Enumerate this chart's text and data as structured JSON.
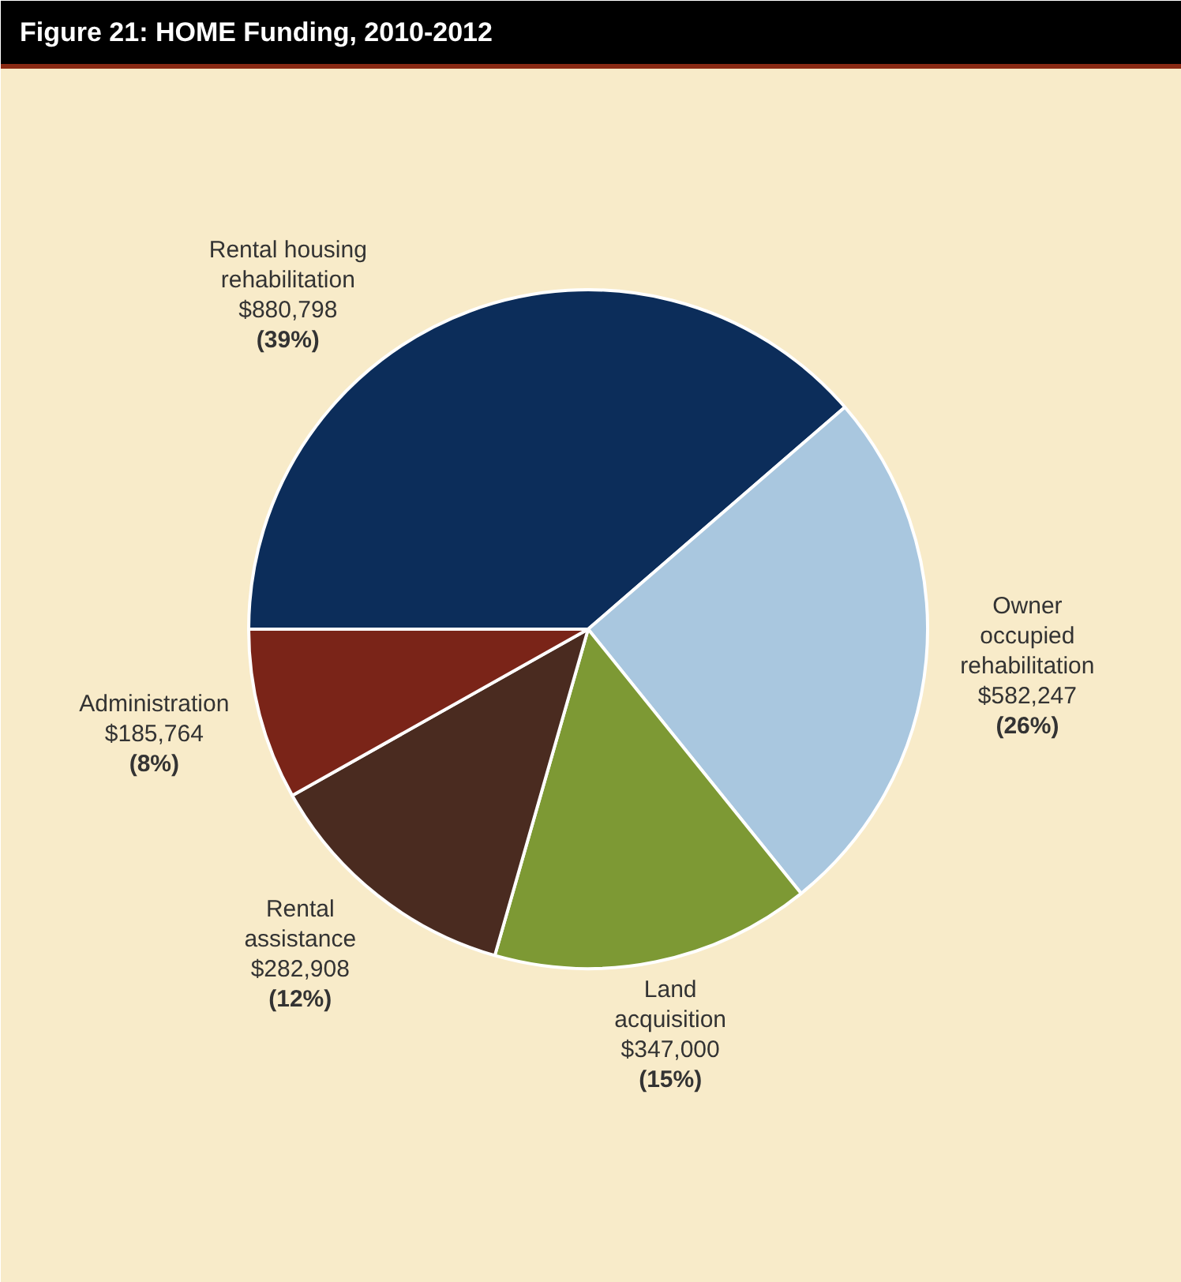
{
  "chart_data": {
    "type": "pie",
    "title": "Figure 21:  HOME Funding, 2010-2012",
    "categories": [
      "Rental housing\nrehabilitation",
      "Owner\noccupied\nrehabilitation",
      "Land\nacquisition",
      "Rental\nassistance",
      "Administration"
    ],
    "values": [
      880798,
      582247,
      347000,
      282908,
      185764
    ],
    "colors": [
      "#0c2d5a",
      "#a9c7df",
      "#7d9934",
      "#4a2b20",
      "#7a2418"
    ],
    "value_labels": [
      "$880,798\n(39%)",
      "$582,247\n(26%)",
      "$347,000\n(15%)",
      "$282,908\n(12%)",
      "$185,764\n(8%)"
    ]
  }
}
